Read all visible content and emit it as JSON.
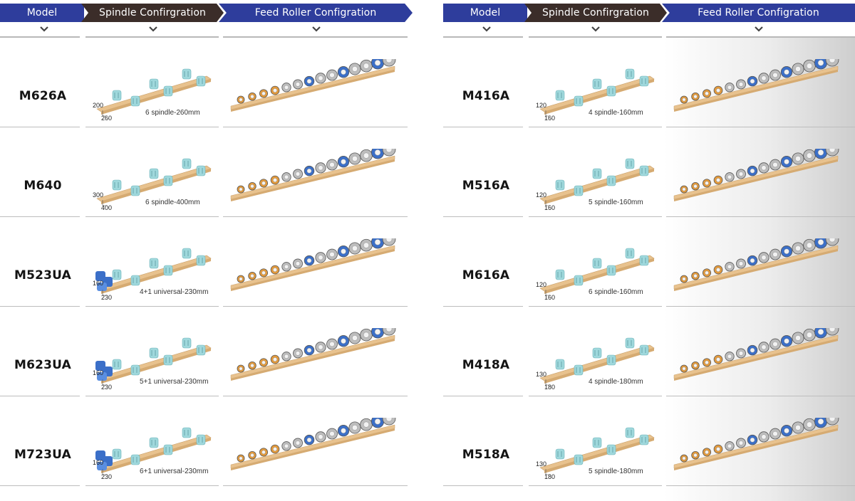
{
  "headers": {
    "model": "Model",
    "spindle": "Spindle Confirgration",
    "feed": "Feed Roller Configration"
  },
  "colors": {
    "header_blue": "#2e3d9c",
    "header_dark": "#3b2d29",
    "beam_wood": "#e8c28e",
    "spindle_cyan": "#9fd8dc",
    "roller_orange": "#e39a3c",
    "roller_blue": "#3b6fc8",
    "roller_grey": "#bdbdbd"
  },
  "left": [
    {
      "model": "M626A",
      "dim_top": "200",
      "dim_bottom": "260",
      "spec": "6 spindle-260mm",
      "universal": false
    },
    {
      "model": "M640",
      "dim_top": "300",
      "dim_bottom": "400",
      "spec": "6 spindle-400mm",
      "universal": false
    },
    {
      "model": "M523UA",
      "dim_top": "160",
      "dim_bottom": "230",
      "spec": "4+1 universal-230mm",
      "universal": true
    },
    {
      "model": "M623UA",
      "dim_top": "160",
      "dim_bottom": "230",
      "spec": "5+1 universal-230mm",
      "universal": true
    },
    {
      "model": "M723UA",
      "dim_top": "160",
      "dim_bottom": "230",
      "spec": "6+1 universal-230mm",
      "universal": true
    }
  ],
  "right": [
    {
      "model": "M416A",
      "dim_top": "120",
      "dim_bottom": "160",
      "spec": "4 spindle-160mm",
      "universal": false
    },
    {
      "model": "M516A",
      "dim_top": "120",
      "dim_bottom": "160",
      "spec": "5 spindle-160mm",
      "universal": false
    },
    {
      "model": "M616A",
      "dim_top": "120",
      "dim_bottom": "160",
      "spec": "6 spindle-160mm",
      "universal": false
    },
    {
      "model": "M418A",
      "dim_top": "130",
      "dim_bottom": "180",
      "spec": "4 spindle-180mm",
      "universal": false
    },
    {
      "model": "M518A",
      "dim_top": "130",
      "dim_bottom": "180",
      "spec": "5 spindle-180mm",
      "universal": false
    }
  ]
}
